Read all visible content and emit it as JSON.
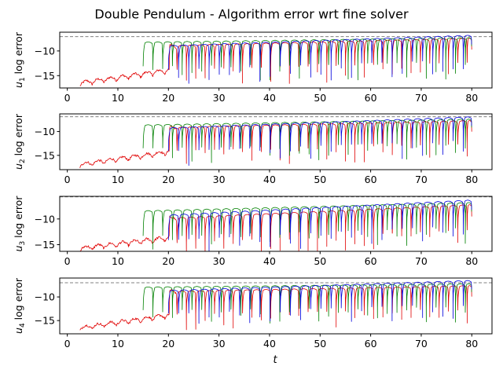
{
  "figure_title": "Double Pendulum - Algorithm error wrt fine solver",
  "xlabel": "t",
  "colors": {
    "red": "#e00000",
    "green": "#008000",
    "blue": "#0000dd",
    "reference": "#808080"
  },
  "chart_data": [
    {
      "type": "line",
      "ylabel_var": "u",
      "ylabel_sub": "1",
      "ylabel_rest": " log error",
      "xlim": [
        -1.5,
        84
      ],
      "ylim": [
        -17.5,
        -6.2
      ],
      "xticks": [
        0,
        10,
        20,
        30,
        40,
        50,
        60,
        70,
        80
      ],
      "yticks": [
        -15,
        -10
      ],
      "reference_y": -7.1,
      "series": [
        {
          "color": "#e00000",
          "t_start": 2.5,
          "t_end": 80,
          "level_start": -16.8,
          "level_end": -7.8,
          "jump_t": 20.2,
          "jump_to": -9.3
        },
        {
          "color": "#008000",
          "t_start": 15,
          "t_end": 80,
          "level_start": -8.6,
          "level_end": -7.7
        },
        {
          "color": "#0000dd",
          "t_start": 20,
          "t_end": 80,
          "level_start": -9.3,
          "level_end": -7.2
        }
      ]
    },
    {
      "type": "line",
      "ylabel_var": "u",
      "ylabel_sub": "2",
      "ylabel_rest": " log error",
      "xlim": [
        -1.5,
        84
      ],
      "ylim": [
        -18,
        -6.3
      ],
      "xticks": [
        0,
        10,
        20,
        30,
        40,
        50,
        60,
        70,
        80
      ],
      "yticks": [
        -15,
        -10
      ],
      "reference_y": -6.9,
      "series": [
        {
          "color": "#e00000",
          "t_start": 2.5,
          "t_end": 80,
          "level_start": -17.2,
          "level_end": -8.1,
          "jump_t": 20.2,
          "jump_to": -9.5
        },
        {
          "color": "#008000",
          "t_start": 15,
          "t_end": 80,
          "level_start": -9.0,
          "level_end": -7.8
        },
        {
          "color": "#0000dd",
          "t_start": 20,
          "t_end": 80,
          "level_start": -9.6,
          "level_end": -7.3
        }
      ]
    },
    {
      "type": "line",
      "ylabel_var": "u",
      "ylabel_sub": "3",
      "ylabel_rest": " log error",
      "xlim": [
        -1.5,
        84
      ],
      "ylim": [
        -16.3,
        -5.6
      ],
      "xticks": [
        0,
        10,
        20,
        30,
        40,
        50,
        60,
        70,
        80
      ],
      "yticks": [
        -15,
        -10
      ],
      "reference_y": -5.7,
      "series": [
        {
          "color": "#e00000",
          "t_start": 2.5,
          "t_end": 80,
          "level_start": -16.0,
          "level_end": -7.6,
          "jump_t": 20.2,
          "jump_to": -10.2
        },
        {
          "color": "#008000",
          "t_start": 15,
          "t_end": 80,
          "level_start": -8.8,
          "level_end": -7.2
        },
        {
          "color": "#0000dd",
          "t_start": 20,
          "t_end": 80,
          "level_start": -9.6,
          "level_end": -6.7
        }
      ]
    },
    {
      "type": "line",
      "ylabel_var": "u",
      "ylabel_sub": "4",
      "ylabel_rest": " log error",
      "xlim": [
        -1.5,
        84
      ],
      "ylim": [
        -17.8,
        -6.0
      ],
      "xticks": [
        0,
        10,
        20,
        30,
        40,
        50,
        60,
        70,
        80
      ],
      "yticks": [
        -15,
        -10
      ],
      "reference_y": -7.0,
      "series": [
        {
          "color": "#e00000",
          "t_start": 2.5,
          "t_end": 80,
          "level_start": -16.8,
          "level_end": -8.0,
          "jump_t": 20.2,
          "jump_to": -9.2
        },
        {
          "color": "#008000",
          "t_start": 15,
          "t_end": 80,
          "level_start": -8.3,
          "level_end": -7.6
        },
        {
          "color": "#0000dd",
          "t_start": 20,
          "t_end": 80,
          "level_start": -9.0,
          "level_end": -6.9
        }
      ]
    }
  ]
}
